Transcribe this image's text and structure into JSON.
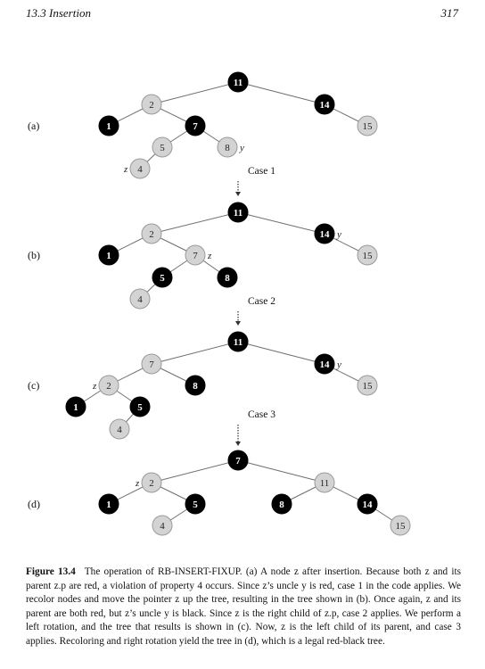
{
  "header": {
    "section": "13.3   Insertion",
    "page_number": "317"
  },
  "colors": {
    "black_node": "#000000",
    "red_node": "#d3d3d3",
    "red_node_stroke": "#9a9a9a",
    "edge": "#6f6f6f",
    "arrow": "#333333"
  },
  "panels": [
    {
      "label": "(a)",
      "nodes": [
        {
          "id": "a11",
          "key": "11",
          "color": "black"
        },
        {
          "id": "a2",
          "key": "2",
          "color": "red"
        },
        {
          "id": "a14",
          "key": "14",
          "color": "black"
        },
        {
          "id": "a1",
          "key": "1",
          "color": "black"
        },
        {
          "id": "a7",
          "key": "7",
          "color": "black"
        },
        {
          "id": "a15",
          "key": "15",
          "color": "red"
        },
        {
          "id": "a5",
          "key": "5",
          "color": "red"
        },
        {
          "id": "a8",
          "key": "8",
          "color": "red"
        },
        {
          "id": "a4",
          "key": "4",
          "color": "red"
        }
      ],
      "edges": [
        [
          "a11",
          "a2"
        ],
        [
          "a11",
          "a14"
        ],
        [
          "a2",
          "a1"
        ],
        [
          "a2",
          "a7"
        ],
        [
          "a14",
          "a15"
        ],
        [
          "a7",
          "a5"
        ],
        [
          "a7",
          "a8"
        ],
        [
          "a5",
          "a4"
        ]
      ],
      "pointers": [
        {
          "node": "a4",
          "text": "z",
          "side": "left"
        },
        {
          "node": "a8",
          "text": "y",
          "side": "right"
        }
      ]
    },
    {
      "label": "(b)",
      "nodes": [
        {
          "id": "b11",
          "key": "11",
          "color": "black"
        },
        {
          "id": "b2",
          "key": "2",
          "color": "red"
        },
        {
          "id": "b14",
          "key": "14",
          "color": "black"
        },
        {
          "id": "b1",
          "key": "1",
          "color": "black"
        },
        {
          "id": "b7",
          "key": "7",
          "color": "red"
        },
        {
          "id": "b15",
          "key": "15",
          "color": "red"
        },
        {
          "id": "b5",
          "key": "5",
          "color": "black"
        },
        {
          "id": "b8",
          "key": "8",
          "color": "black"
        },
        {
          "id": "b4",
          "key": "4",
          "color": "red"
        }
      ],
      "edges": [
        [
          "b11",
          "b2"
        ],
        [
          "b11",
          "b14"
        ],
        [
          "b2",
          "b1"
        ],
        [
          "b2",
          "b7"
        ],
        [
          "b14",
          "b15"
        ],
        [
          "b7",
          "b5"
        ],
        [
          "b7",
          "b8"
        ],
        [
          "b5",
          "b4"
        ]
      ],
      "pointers": [
        {
          "node": "b7",
          "text": "z",
          "side": "right"
        },
        {
          "node": "b14",
          "text": "y",
          "side": "right"
        }
      ]
    },
    {
      "label": "(c)",
      "nodes": [
        {
          "id": "c11",
          "key": "11",
          "color": "black"
        },
        {
          "id": "c7",
          "key": "7",
          "color": "red"
        },
        {
          "id": "c14",
          "key": "14",
          "color": "black"
        },
        {
          "id": "c2",
          "key": "2",
          "color": "red"
        },
        {
          "id": "c8",
          "key": "8",
          "color": "black"
        },
        {
          "id": "c15",
          "key": "15",
          "color": "red"
        },
        {
          "id": "c1",
          "key": "1",
          "color": "black"
        },
        {
          "id": "c5",
          "key": "5",
          "color": "black"
        },
        {
          "id": "c4",
          "key": "4",
          "color": "red"
        }
      ],
      "edges": [
        [
          "c11",
          "c7"
        ],
        [
          "c11",
          "c14"
        ],
        [
          "c7",
          "c2"
        ],
        [
          "c7",
          "c8"
        ],
        [
          "c14",
          "c15"
        ],
        [
          "c2",
          "c1"
        ],
        [
          "c2",
          "c5"
        ],
        [
          "c5",
          "c4"
        ]
      ],
      "pointers": [
        {
          "node": "c2",
          "text": "z",
          "side": "left"
        },
        {
          "node": "c14",
          "text": "y",
          "side": "right"
        }
      ]
    },
    {
      "label": "(d)",
      "nodes": [
        {
          "id": "d7",
          "key": "7",
          "color": "black"
        },
        {
          "id": "d2",
          "key": "2",
          "color": "red"
        },
        {
          "id": "d11",
          "key": "11",
          "color": "red"
        },
        {
          "id": "d1",
          "key": "1",
          "color": "black"
        },
        {
          "id": "d5",
          "key": "5",
          "color": "black"
        },
        {
          "id": "d8",
          "key": "8",
          "color": "black"
        },
        {
          "id": "d14",
          "key": "14",
          "color": "black"
        },
        {
          "id": "d4",
          "key": "4",
          "color": "red"
        },
        {
          "id": "d15",
          "key": "15",
          "color": "red"
        }
      ],
      "edges": [
        [
          "d7",
          "d2"
        ],
        [
          "d7",
          "d11"
        ],
        [
          "d2",
          "d1"
        ],
        [
          "d2",
          "d5"
        ],
        [
          "d11",
          "d8"
        ],
        [
          "d11",
          "d14"
        ],
        [
          "d5",
          "d4"
        ],
        [
          "d14",
          "d15"
        ]
      ],
      "pointers": [
        {
          "node": "d2",
          "text": "z",
          "side": "left"
        }
      ]
    }
  ],
  "transitions": [
    {
      "label": "Case 1"
    },
    {
      "label": "Case 2"
    },
    {
      "label": "Case 3"
    }
  ],
  "caption": {
    "label": "Figure 13.4",
    "text": "The operation of RB-INSERT-FIXUP. (a) A node z after insertion. Because both z and its parent z.p are red, a violation of property 4 occurs. Since z’s uncle y is red, case 1 in the code applies. We recolor nodes and move the pointer z up the tree, resulting in the tree shown in (b). Once again, z and its parent are both red, but z’s uncle y is black. Since z is the right child of z.p, case 2 applies. We perform a left rotation, and the tree that results is shown in (c). Now, z is the left child of its parent, and case 3 applies. Recoloring and right rotation yield the tree in (d), which is a legal red-black tree."
  }
}
